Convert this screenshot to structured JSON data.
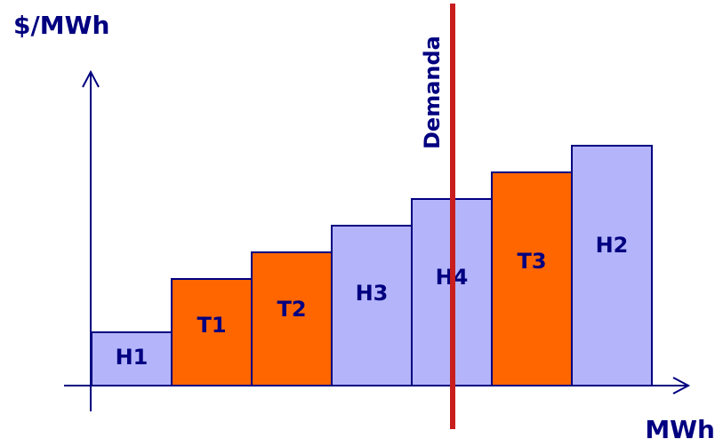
{
  "chart_data": {
    "type": "bar",
    "title": "",
    "ylabel": "$/MWh",
    "xlabel": "MWh",
    "categories": [
      "H1",
      "T1",
      "T2",
      "H3",
      "H4",
      "T3",
      "H2"
    ],
    "values": [
      1,
      2,
      2.5,
      3,
      3.5,
      4,
      4.5
    ],
    "bar_kinds": [
      "hydro",
      "thermal",
      "thermal",
      "hydro",
      "hydro",
      "thermal",
      "hydro"
    ],
    "ylim": [
      0,
      6
    ],
    "demand": {
      "label": "Demanda",
      "position": 4.5
    },
    "colors": {
      "hydro": "#b4b4fa",
      "thermal": "#ff6600",
      "bar_edge": "#000080",
      "text": "#000080",
      "axis": "#000080",
      "demand_line": "#c81e1e"
    }
  }
}
